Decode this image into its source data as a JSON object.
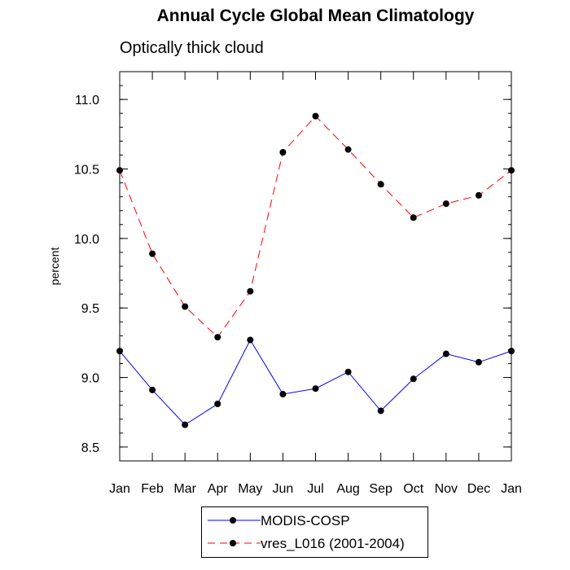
{
  "chart_data": {
    "type": "line",
    "title": "Annual Cycle Global Mean Climatology",
    "subtitle": "Optically thick cloud",
    "ylabel": "percent",
    "xlabel": "",
    "ylim": [
      8.4,
      11.2
    ],
    "yticks": [
      "8.5",
      "9.0",
      "9.5",
      "10.0",
      "10.5",
      "11.0"
    ],
    "categories": [
      "Jan",
      "Feb",
      "Mar",
      "Apr",
      "May",
      "Jun",
      "Jul",
      "Aug",
      "Sep",
      "Oct",
      "Nov",
      "Dec",
      "Jan"
    ],
    "grid": false,
    "legend_position": "bottom",
    "series": [
      {
        "name": "MODIS-COSP",
        "color": "#0000ff",
        "dash": "solid",
        "marker": "dot",
        "values": [
          9.19,
          8.91,
          8.66,
          8.81,
          9.27,
          8.88,
          8.92,
          9.04,
          8.76,
          8.99,
          9.17,
          9.11,
          9.19
        ]
      },
      {
        "name": "vres_L016 (2001-2004)",
        "color": "#ff0000",
        "dash": "dashed",
        "marker": "dot",
        "values": [
          10.49,
          9.89,
          9.51,
          9.29,
          9.62,
          10.62,
          10.88,
          10.64,
          10.39,
          10.15,
          10.25,
          10.31,
          10.49
        ]
      }
    ]
  }
}
